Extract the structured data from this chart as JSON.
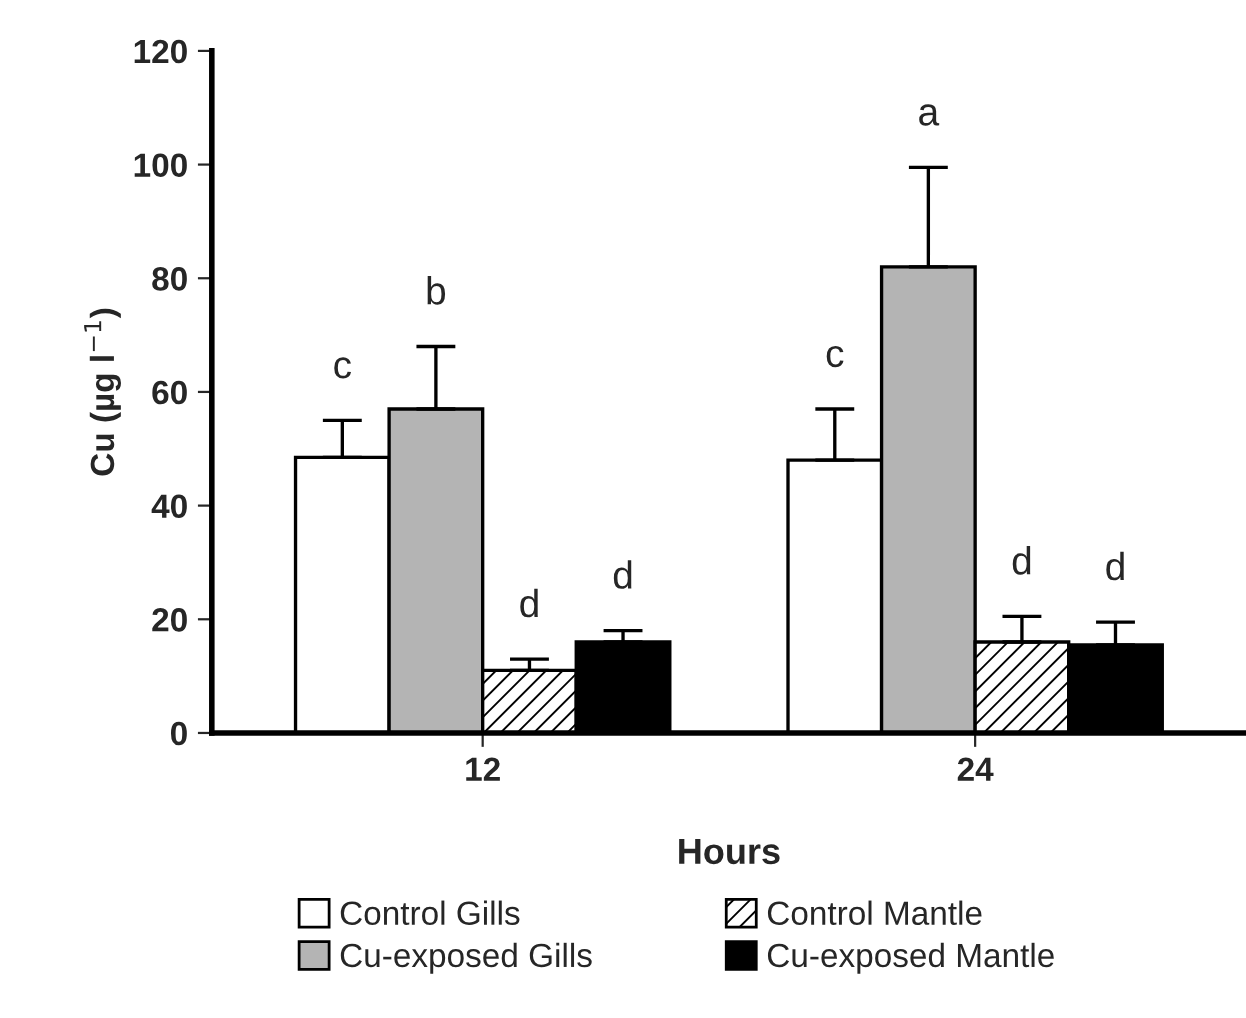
{
  "chart_data": {
    "type": "bar",
    "xlabel": "Hours",
    "ylabel": "Cu (µg l$^{−1}$)",
    "categories": [
      "12",
      "24"
    ],
    "series": [
      {
        "name": "Control Gills",
        "color": "#ffffff",
        "values": [
          48.5,
          48
        ],
        "errors": [
          [
            48.5,
            55
          ],
          [
            48,
            57
          ]
        ]
      },
      {
        "name": "Cu-exposed Gills",
        "color": "#b4b4b4",
        "values": [
          57,
          82
        ],
        "errors": [
          [
            57,
            68
          ],
          [
            82,
            99.5
          ]
        ]
      },
      {
        "name": "Control Mantle",
        "color": "#000000",
        "values": [
          11,
          16
        ],
        "errors": [
          [
            11,
            13
          ],
          [
            16,
            20.5
          ]
        ]
      },
      {
        "name": "Cu-exposed Mantle",
        "color": "#000000",
        "values": [
          16,
          15.5
        ],
        "errors": [
          [
            16,
            18
          ],
          [
            15.5,
            19.5
          ]
        ]
      }
    ],
    "ylim": [
      0,
      120
    ],
    "yticks": [
      0,
      20,
      40,
      60,
      80,
      100,
      120
    ],
    "grid": false,
    "legend": "bottom",
    "annotations": [
      "c",
      "b",
      "d",
      "d",
      "c",
      "a",
      "d",
      "d"
    ]
  }
}
